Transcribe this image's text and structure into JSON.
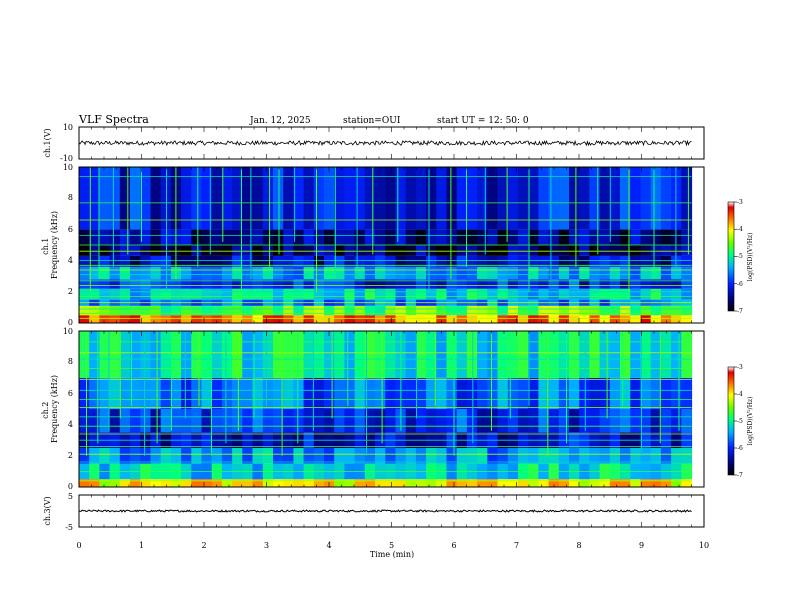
{
  "header": {
    "title": "VLF Spectra",
    "date": "Jan. 12, 2025",
    "station": "station=OUI",
    "start_ut": "start UT =  12: 50: 0"
  },
  "chart_data": [
    {
      "type": "line",
      "panel": "ch1-waveform",
      "ylabel": "ch.1(V)",
      "ylim": [
        -10,
        10
      ],
      "y_ticks": [
        "10",
        "-10"
      ],
      "xlim": [
        0,
        10
      ],
      "data_extent_min": 9.8,
      "signal": {
        "mean": 0,
        "amplitude": 1.3
      },
      "color": "#000000"
    },
    {
      "type": "heatmap",
      "panel": "ch1-spectrogram",
      "ylabel": "ch.1\nFrequency (kHz)",
      "ylim": [
        0,
        10
      ],
      "y_ticks": [
        "0",
        "2",
        "4",
        "6",
        "8",
        "10"
      ],
      "xlim": [
        0,
        10
      ],
      "data_extent_min": 9.8,
      "colorbar": {
        "label": "log(PSD)(V²/Hz)",
        "range": [
          -7,
          -3
        ],
        "ticks": [
          "-3",
          "-4",
          "-5",
          "-6",
          "-7"
        ]
      },
      "bands": [
        {
          "f0": 0.0,
          "f1": 0.5,
          "level": -3.6
        },
        {
          "f0": 0.5,
          "f1": 1.1,
          "level": -4.6
        },
        {
          "f0": 1.1,
          "f1": 1.5,
          "level": -5.6
        },
        {
          "f0": 1.5,
          "f1": 2.2,
          "level": -5.2
        },
        {
          "f0": 2.2,
          "f1": 2.8,
          "level": -6.0
        },
        {
          "f0": 2.8,
          "f1": 3.6,
          "level": -5.4
        },
        {
          "f0": 3.6,
          "f1": 4.3,
          "level": -6.3
        },
        {
          "f0": 4.3,
          "f1": 5.0,
          "level": -6.6
        },
        {
          "f0": 5.0,
          "f1": 6.0,
          "level": -6.5
        },
        {
          "f0": 6.0,
          "f1": 10.0,
          "level": -6.1
        }
      ],
      "lines_khz": [
        0.3,
        0.6,
        0.9,
        1.3,
        1.7,
        2.0,
        2.4,
        2.7,
        3.1,
        3.4,
        3.7,
        4.0,
        4.6,
        5.0,
        5.6,
        6.6,
        7.7,
        9.4
      ],
      "spikes_min": [
        0.18,
        0.32,
        0.55,
        0.78,
        1.0,
        1.4,
        1.55,
        1.9,
        2.1,
        2.3,
        2.6,
        2.75,
        3.05,
        3.2,
        3.45,
        3.8,
        4.1,
        4.45,
        4.7,
        5.1,
        5.6,
        5.95,
        6.2,
        6.5,
        6.85,
        7.2,
        7.55,
        7.95,
        8.3,
        8.5,
        8.8,
        9.2,
        9.55,
        9.75
      ]
    },
    {
      "type": "heatmap",
      "panel": "ch2-spectrogram",
      "ylabel": "ch.2\nFrequency (kHz)",
      "ylim": [
        0,
        10
      ],
      "y_ticks": [
        "0",
        "2",
        "4",
        "6",
        "8",
        "10"
      ],
      "xlim": [
        0,
        10
      ],
      "data_extent_min": 9.8,
      "colorbar": {
        "label": "log(PSD)(V²/Hz)",
        "range": [
          -7,
          -3
        ],
        "ticks": [
          "-3",
          "-4",
          "-5",
          "-6",
          "-7"
        ]
      },
      "bands": [
        {
          "f0": 0.0,
          "f1": 0.5,
          "level": -4.0
        },
        {
          "f0": 0.5,
          "f1": 1.5,
          "level": -5.2
        },
        {
          "f0": 1.5,
          "f1": 2.5,
          "level": -5.5
        },
        {
          "f0": 2.5,
          "f1": 3.5,
          "level": -6.2
        },
        {
          "f0": 3.5,
          "f1": 5.0,
          "level": -6.0
        },
        {
          "f0": 5.0,
          "f1": 7.0,
          "level": -5.7
        },
        {
          "f0": 7.0,
          "f1": 10.0,
          "level": -5.1
        }
      ],
      "lines_khz": [
        0.4,
        1.0,
        1.6,
        2.1,
        2.6,
        3.0,
        3.4,
        3.9,
        4.5,
        5.1,
        5.6,
        6.2,
        6.9,
        7.6,
        8.2,
        8.6,
        9.3
      ],
      "spikes_min": [
        0.12,
        0.3,
        0.48,
        0.66,
        0.84,
        1.05,
        1.25,
        1.48,
        1.7,
        1.92,
        2.12,
        2.35,
        2.55,
        2.8,
        3.0,
        3.25,
        3.5,
        3.75,
        4.05,
        4.3,
        4.6,
        4.85,
        5.15,
        5.4,
        5.7,
        6.0,
        6.3,
        6.6,
        6.9,
        7.2,
        7.5,
        7.8,
        8.1,
        8.45,
        8.7,
        9.0,
        9.3,
        9.6
      ]
    },
    {
      "type": "line",
      "panel": "ch3-waveform",
      "ylabel": "ch.3(V)",
      "ylim": [
        -5,
        5
      ],
      "y_ticks": [
        "5",
        "-5"
      ],
      "xlim": [
        0,
        10
      ],
      "data_extent_min": 9.8,
      "signal": {
        "mean": 0,
        "amplitude": 0.3
      },
      "color": "#000000",
      "xlabel": "Time (min)",
      "x_ticks": [
        "0",
        "1",
        "2",
        "3",
        "4",
        "5",
        "6",
        "7",
        "8",
        "9",
        "10"
      ]
    }
  ]
}
